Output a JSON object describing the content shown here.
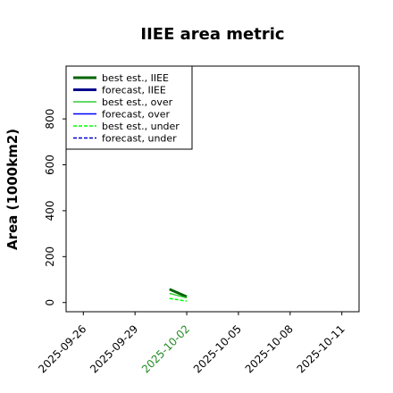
{
  "chart_data": {
    "type": "line",
    "title": "IIEE area metric",
    "ylabel": "Area (1000km2)",
    "xlabel": "",
    "ylim": [
      -40,
      1030
    ],
    "yticks": [
      0,
      200,
      400,
      600,
      800
    ],
    "xlim": [
      "2025-09-25",
      "2025-10-12"
    ],
    "xticks": [
      "2025-09-26",
      "2025-09-29",
      "2025-10-02",
      "2025-10-05",
      "2025-10-08",
      "2025-10-11"
    ],
    "highlight_tick": "2025-10-02",
    "highlight_color": "#228B22",
    "grid": false,
    "legend_position": "upper-left",
    "series": [
      {
        "name": "best est., IIEE",
        "color": "#006400",
        "style": "solid",
        "width": 3,
        "x": [
          "2025-10-01",
          "2025-10-02"
        ],
        "y": [
          58,
          25
        ]
      },
      {
        "name": "forecast, IIEE",
        "color": "#00008B",
        "style": "solid",
        "width": 3,
        "x": [],
        "y": []
      },
      {
        "name": "best est., over",
        "color": "#32CD32",
        "style": "solid",
        "width": 1.5,
        "x": [
          "2025-10-01",
          "2025-10-02"
        ],
        "y": [
          40,
          20
        ]
      },
      {
        "name": "forecast, over",
        "color": "#0000FF",
        "style": "solid",
        "width": 1.5,
        "x": [],
        "y": []
      },
      {
        "name": "best est., under",
        "color": "#00FF00",
        "style": "dashed",
        "width": 1.5,
        "x": [
          "2025-10-01",
          "2025-10-02"
        ],
        "y": [
          18,
          6
        ]
      },
      {
        "name": "forecast, under",
        "color": "#0000CD",
        "style": "dashed",
        "width": 1.5,
        "x": [],
        "y": []
      }
    ]
  }
}
